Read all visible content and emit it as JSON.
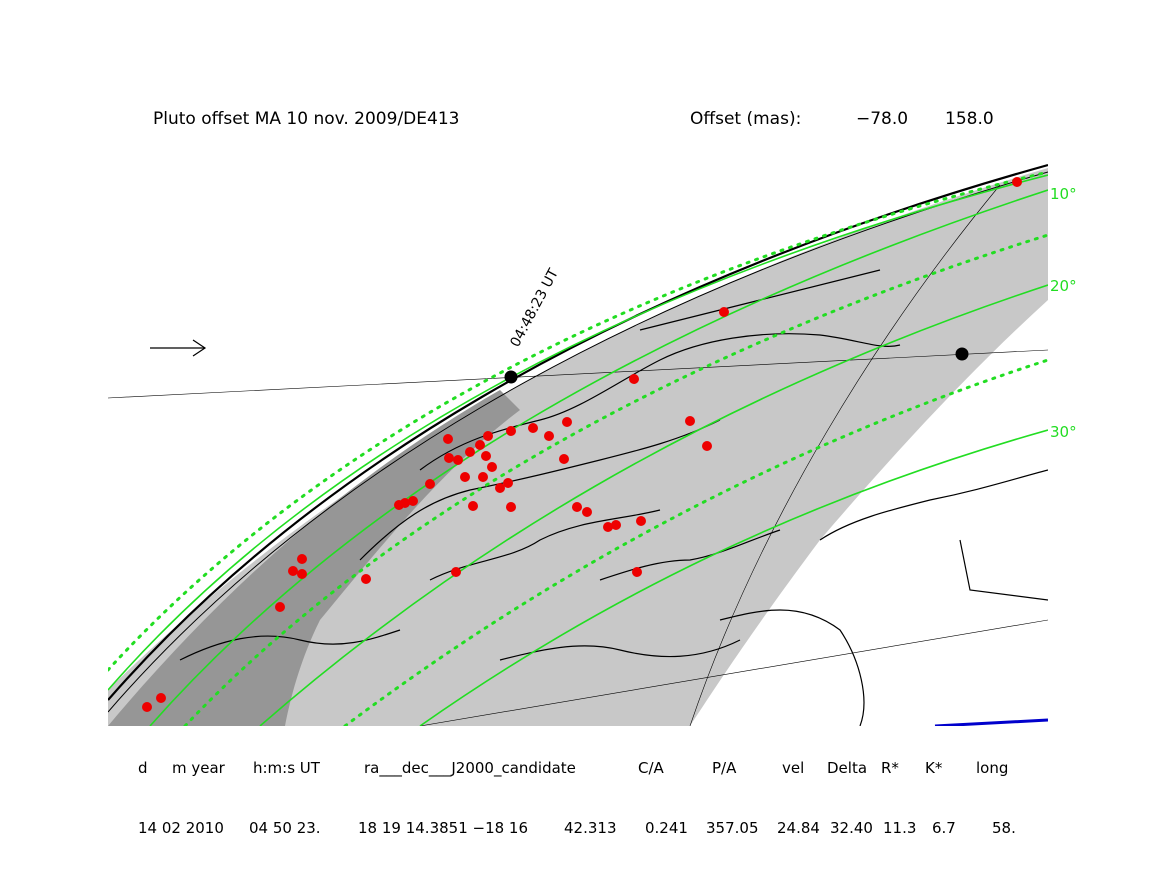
{
  "header": {
    "title": "Pluto offset MA 10 nov. 2009/DE413",
    "offset_label": "Offset (mas):",
    "offset_ra": "−78.0",
    "offset_dec": "158.0"
  },
  "map": {
    "time_label": "04:48:23 UT",
    "latitude_labels": [
      "10°",
      "20°",
      "30°"
    ],
    "colors": {
      "shadow_band": "#c8c8c8",
      "penumbra_dark": "#969696",
      "latitude_lines": "#22dd22",
      "stations": "#ee0000",
      "markers": "#000000",
      "scale_bar": "#0000cc"
    },
    "icons": [
      "arrow-right-icon"
    ]
  },
  "table": {
    "headers": [
      "d",
      "m year",
      "h:m:s UT",
      "ra___dec___J2000_candidate",
      "C/A",
      "P/A",
      "vel",
      "Delta",
      "R*",
      "K*",
      "long"
    ],
    "values": [
      "14 02 2010",
      "04 50 23.",
      "18 19 14.3851 −18 16",
      "42.313",
      "0.241",
      "357.05",
      "24.84",
      "32.40",
      "11.3",
      "6.7",
      "58."
    ]
  }
}
